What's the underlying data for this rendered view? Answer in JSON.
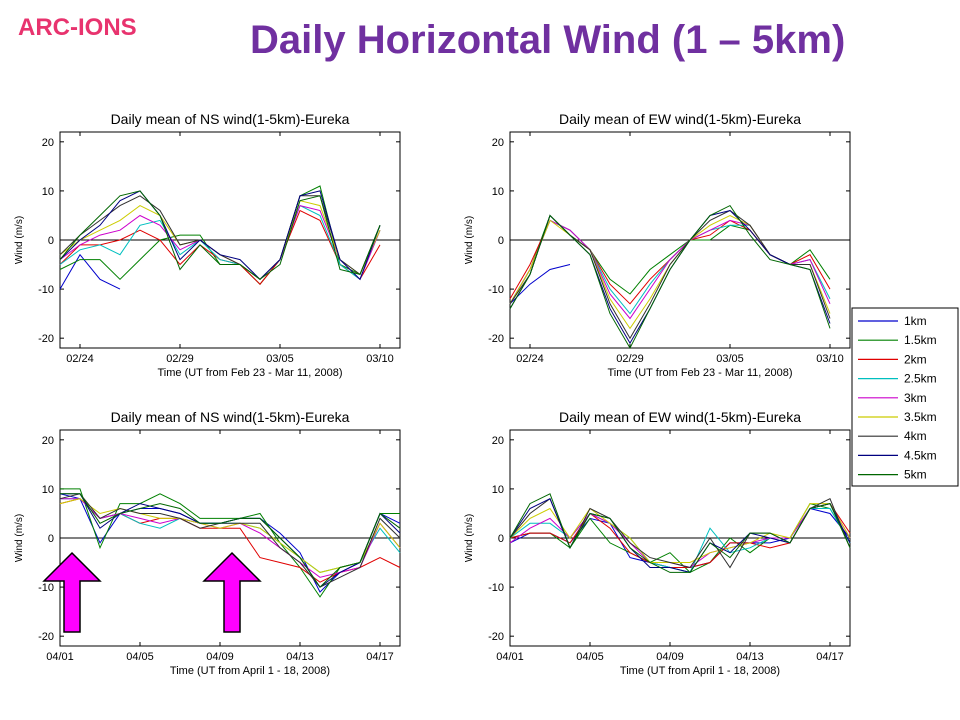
{
  "slide": {
    "logo": "ARC-IONS",
    "title": "Daily Horizontal Wind (1 – 5km)"
  },
  "legend": {
    "entries": [
      {
        "label": "1km",
        "color": "#0000cc"
      },
      {
        "label": "1.5km",
        "color": "#008000"
      },
      {
        "label": "2km",
        "color": "#e00000"
      },
      {
        "label": "2.5km",
        "color": "#00bfbf"
      },
      {
        "label": "3km",
        "color": "#cc00cc"
      },
      {
        "label": "3.5km",
        "color": "#cccc00"
      },
      {
        "label": "4km",
        "color": "#303030"
      },
      {
        "label": "4.5km",
        "color": "#000080"
      },
      {
        "label": "5km",
        "color": "#006600"
      }
    ]
  },
  "chart_data": [
    {
      "type": "line",
      "title": "Daily mean of NS wind(1-5km)-Eureka",
      "xlabel": "Time (UT from Feb 23 - Mar 11, 2008)",
      "ylabel": "Wind (m/s)",
      "ylim": [
        -22,
        22
      ],
      "yticks": [
        20,
        10,
        0,
        -10,
        -20
      ],
      "xticks": [
        {
          "x": 1,
          "label": "02/24"
        },
        {
          "x": 6,
          "label": "02/29"
        },
        {
          "x": 11,
          "label": "03/05"
        },
        {
          "x": 16,
          "label": "03/10"
        }
      ],
      "xlim": [
        0,
        17
      ],
      "x": [
        0,
        1,
        2,
        3,
        4,
        5,
        6,
        7,
        8,
        9,
        10,
        11,
        12,
        13,
        14,
        15,
        16,
        17
      ],
      "series": [
        {
          "name": "1km",
          "values": [
            -10,
            -3,
            -8,
            -10,
            null,
            null,
            null,
            null,
            null,
            null,
            null,
            null,
            null,
            null,
            null,
            null,
            null,
            null
          ]
        },
        {
          "name": "1.5km",
          "values": [
            -6,
            -4,
            -4,
            -8,
            -4,
            0,
            1,
            1,
            -5,
            -5,
            -9,
            -4,
            9,
            11,
            -5,
            -7,
            3,
            null
          ]
        },
        {
          "name": "2km",
          "values": [
            -5,
            -1,
            -1,
            0,
            2,
            0,
            -5,
            -1,
            -4,
            -5,
            -9,
            -4,
            6,
            4,
            -5,
            -8,
            -1,
            null
          ]
        },
        {
          "name": "2.5km",
          "values": [
            -5,
            -2,
            -1,
            -3,
            3,
            4,
            -3,
            0,
            -4,
            -5,
            -8,
            -4,
            7,
            5,
            -5,
            -8,
            2,
            null
          ]
        },
        {
          "name": "3km",
          "values": [
            -4,
            -1,
            1,
            2,
            5,
            3,
            -2,
            0,
            -3,
            -5,
            -8,
            -4,
            7,
            6,
            -4,
            -8,
            2,
            null
          ]
        },
        {
          "name": "3.5km",
          "values": [
            -3,
            0,
            2,
            4,
            7,
            5,
            -1,
            0,
            -3,
            -5,
            -8,
            -4,
            8,
            7,
            -4,
            -7,
            2,
            null
          ]
        },
        {
          "name": "4km",
          "values": [
            -3,
            1,
            4,
            7,
            9,
            6,
            -1,
            0,
            -3,
            -5,
            -8,
            -4,
            9,
            9,
            -4,
            -7,
            3,
            null
          ]
        },
        {
          "name": "4.5km",
          "values": [
            -4,
            0,
            3,
            8,
            10,
            5,
            -4,
            0,
            -3,
            -4,
            -8,
            -4,
            9,
            10,
            -4,
            -8,
            3,
            null
          ]
        },
        {
          "name": "5km",
          "values": [
            -4,
            1,
            5,
            9,
            10,
            5,
            -6,
            -1,
            -5,
            -5,
            -8,
            -5,
            8,
            9,
            -6,
            -7,
            3,
            null
          ]
        }
      ]
    },
    {
      "type": "line",
      "title": "Daily mean of EW wind(1-5km)-Eureka",
      "xlabel": "Time (UT from Feb 23 - Mar 11, 2008)",
      "ylabel": "Wind (m/s)",
      "ylim": [
        -22,
        22
      ],
      "yticks": [
        20,
        10,
        0,
        -10,
        -20
      ],
      "xticks": [
        {
          "x": 1,
          "label": "02/24"
        },
        {
          "x": 6,
          "label": "02/29"
        },
        {
          "x": 11,
          "label": "03/05"
        },
        {
          "x": 16,
          "label": "03/10"
        }
      ],
      "xlim": [
        0,
        17
      ],
      "x": [
        0,
        1,
        2,
        3,
        4,
        5,
        6,
        7,
        8,
        9,
        10,
        11,
        12,
        13,
        14,
        15,
        16,
        17
      ],
      "series": [
        {
          "name": "1km",
          "values": [
            -13,
            -9,
            -6,
            -5,
            null,
            null,
            null,
            null,
            null,
            null,
            null,
            null,
            null,
            null,
            null,
            null,
            null,
            null
          ]
        },
        {
          "name": "1.5km",
          "values": [
            -13,
            -6,
            5,
            1,
            -2,
            -8,
            -11,
            -6,
            -3,
            0,
            0,
            3,
            2,
            -3,
            -5,
            -2,
            -8,
            null
          ]
        },
        {
          "name": "2km",
          "values": [
            -12,
            -5,
            4,
            2,
            -2,
            -9,
            -13,
            -8,
            -4,
            0,
            1,
            4,
            2,
            -3,
            -5,
            -3,
            -10,
            null
          ]
        },
        {
          "name": "2.5km",
          "values": [
            -13,
            -6,
            4,
            2,
            -2,
            -10,
            -15,
            -9,
            -4,
            0,
            2,
            3,
            3,
            -3,
            -5,
            -4,
            -12,
            null
          ]
        },
        {
          "name": "3km",
          "values": [
            -13,
            -6,
            4,
            2,
            -2,
            -11,
            -16,
            -10,
            -4,
            0,
            2,
            4,
            3,
            -3,
            -5,
            -4,
            -13,
            null
          ]
        },
        {
          "name": "3.5km",
          "values": [
            -13,
            -6,
            4,
            1,
            -2,
            -12,
            -18,
            -12,
            -5,
            0,
            3,
            5,
            3,
            -3,
            -5,
            -5,
            -15,
            null
          ]
        },
        {
          "name": "4km",
          "values": [
            -13,
            -7,
            5,
            1,
            -2,
            -13,
            -20,
            -13,
            -5,
            0,
            4,
            6,
            3,
            -3,
            -5,
            -5,
            -16,
            null
          ]
        },
        {
          "name": "4.5km",
          "values": [
            -14,
            -7,
            5,
            1,
            -3,
            -14,
            -21,
            -14,
            -6,
            0,
            5,
            6,
            2,
            -3,
            -5,
            -6,
            -17,
            null
          ]
        },
        {
          "name": "5km",
          "values": [
            -14,
            -7,
            5,
            1,
            -3,
            -15,
            -22,
            -14,
            -6,
            0,
            5,
            7,
            1,
            -4,
            -5,
            -6,
            -18,
            null
          ]
        }
      ]
    },
    {
      "type": "line",
      "title": "Daily mean of NS wind(1-5km)-Eureka",
      "xlabel": "Time (UT from April 1 - 18, 2008)",
      "ylabel": "Wind (m/s)",
      "ylim": [
        -22,
        22
      ],
      "yticks": [
        20,
        10,
        0,
        -10,
        -20
      ],
      "xticks": [
        {
          "x": 0,
          "label": "04/01"
        },
        {
          "x": 4,
          "label": "04/05"
        },
        {
          "x": 8,
          "label": "04/09"
        },
        {
          "x": 12,
          "label": "04/13"
        },
        {
          "x": 16,
          "label": "04/17"
        }
      ],
      "xlim": [
        0,
        17
      ],
      "x": [
        0,
        1,
        2,
        3,
        4,
        5,
        6,
        7,
        8,
        9,
        10,
        11,
        12,
        13,
        14,
        15,
        16,
        17
      ],
      "series": [
        {
          "name": "1km",
          "values": [
            9,
            8,
            -1,
            5,
            6,
            6,
            5,
            3,
            3,
            4,
            4,
            1,
            -3,
            -11,
            -7,
            -5,
            5,
            3
          ]
        },
        {
          "name": "1.5km",
          "values": [
            10,
            10,
            -2,
            7,
            7,
            9,
            7,
            4,
            4,
            4,
            5,
            -1,
            -6,
            -12,
            -6,
            -5,
            5,
            5
          ]
        },
        {
          "name": "2km",
          "values": [
            7,
            8,
            4,
            5,
            3,
            4,
            4,
            2,
            2,
            2,
            -4,
            -5,
            -6,
            -9,
            -7,
            -6,
            -4,
            -6
          ]
        },
        {
          "name": "2.5km",
          "values": [
            8,
            8,
            4,
            5,
            3,
            2,
            4,
            3,
            3,
            3,
            2,
            -1,
            -4,
            -7,
            -6,
            -5,
            2,
            -3
          ]
        },
        {
          "name": "3km",
          "values": [
            8,
            8,
            4,
            5,
            4,
            3,
            4,
            3,
            2,
            3,
            1,
            -2,
            -5,
            -8,
            -7,
            -6,
            3,
            -2
          ]
        },
        {
          "name": "3.5km",
          "values": [
            7,
            8,
            5,
            6,
            5,
            4,
            4,
            3,
            2,
            3,
            2,
            -1,
            -4,
            -7,
            -6,
            -5,
            3,
            -2
          ]
        },
        {
          "name": "4km",
          "values": [
            8,
            9,
            4,
            6,
            5,
            5,
            4,
            2,
            3,
            3,
            3,
            -2,
            -5,
            -10,
            -8,
            -6,
            4,
            0
          ]
        },
        {
          "name": "4.5km",
          "values": [
            9,
            9,
            2,
            5,
            7,
            6,
            5,
            3,
            3,
            4,
            4,
            0,
            -4,
            -10,
            -7,
            -5,
            5,
            1
          ]
        },
        {
          "name": "5km",
          "values": [
            9,
            9,
            3,
            5,
            6,
            7,
            6,
            3,
            3,
            4,
            4,
            0,
            -4,
            -10,
            -6,
            -5,
            5,
            2
          ]
        }
      ]
    },
    {
      "type": "line",
      "title": "Daily mean of EW wind(1-5km)-Eureka",
      "xlabel": "Time (UT from April 1 - 18, 2008)",
      "ylabel": "Wind (m/s)",
      "ylim": [
        -22,
        22
      ],
      "yticks": [
        20,
        10,
        0,
        -10,
        -20
      ],
      "xticks": [
        {
          "x": 0,
          "label": "04/01"
        },
        {
          "x": 4,
          "label": "04/05"
        },
        {
          "x": 8,
          "label": "04/09"
        },
        {
          "x": 12,
          "label": "04/13"
        },
        {
          "x": 16,
          "label": "04/17"
        }
      ],
      "xlim": [
        0,
        17
      ],
      "x": [
        0,
        1,
        2,
        3,
        4,
        5,
        6,
        7,
        8,
        9,
        10,
        11,
        12,
        13,
        14,
        15,
        16,
        17
      ],
      "series": [
        {
          "name": "1km",
          "values": [
            -1,
            1,
            1,
            -1,
            4,
            3,
            -4,
            -5,
            -6,
            -6,
            -5,
            -1,
            -1,
            -1,
            0,
            6,
            5,
            0
          ]
        },
        {
          "name": "1.5km",
          "values": [
            0,
            1,
            1,
            -2,
            4,
            -1,
            -3,
            -5,
            -3,
            -7,
            -5,
            0,
            -3,
            0,
            0,
            7,
            6,
            -1
          ]
        },
        {
          "name": "2km",
          "values": [
            0,
            1,
            1,
            -1,
            5,
            2,
            -3,
            -5,
            -6,
            -6,
            -5,
            -1,
            -1,
            -2,
            -1,
            6,
            7,
            1
          ]
        },
        {
          "name": "2.5km",
          "values": [
            0,
            3,
            3,
            0,
            5,
            3,
            0,
            -5,
            -6,
            -7,
            2,
            -3,
            -2,
            0,
            0,
            6,
            6,
            -1
          ]
        },
        {
          "name": "3km",
          "values": [
            -1,
            2,
            4,
            0,
            5,
            3,
            -1,
            -5,
            -5,
            -6,
            -3,
            -2,
            -1,
            0,
            0,
            6,
            7,
            0
          ]
        },
        {
          "name": "3.5km",
          "values": [
            0,
            4,
            6,
            0,
            6,
            3,
            0,
            -5,
            -5,
            -5,
            -3,
            -2,
            -1,
            1,
            0,
            7,
            7,
            0
          ]
        },
        {
          "name": "4km",
          "values": [
            0,
            5,
            8,
            -2,
            6,
            4,
            -1,
            -4,
            -5,
            -6,
            0,
            -6,
            1,
            1,
            -1,
            6,
            8,
            -2
          ]
        },
        {
          "name": "4.5km",
          "values": [
            0,
            6,
            8,
            -2,
            5,
            4,
            -2,
            -6,
            -6,
            -7,
            -1,
            -3,
            1,
            0,
            -1,
            6,
            7,
            -1
          ]
        },
        {
          "name": "5km",
          "values": [
            0,
            7,
            9,
            -2,
            5,
            4,
            -2,
            -5,
            -7,
            -7,
            -1,
            -4,
            1,
            1,
            -1,
            6,
            7,
            -2
          ]
        }
      ]
    }
  ]
}
